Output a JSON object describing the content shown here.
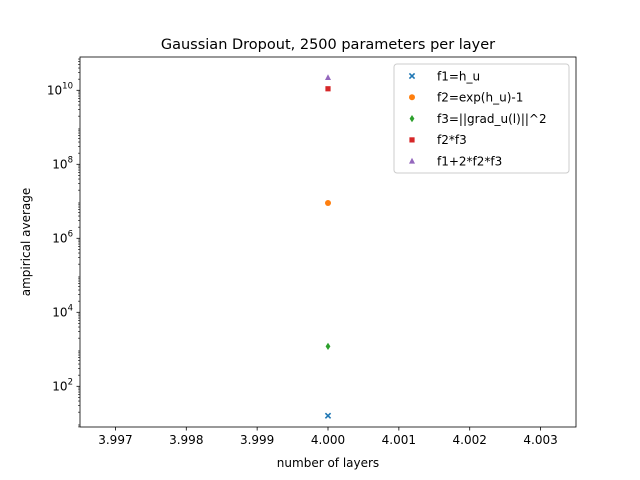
{
  "chart_data": {
    "type": "scatter",
    "title": "Gaussian Dropout, 2500 parameters per layer",
    "xlabel": "number of layers",
    "ylabel": "ampirical average",
    "xlim": [
      3.9965,
      4.0035
    ],
    "ylim_log10": [
      0.9,
      10.9
    ],
    "yscale": "log",
    "xticks": [
      "3.997",
      "3.998",
      "3.999",
      "4.000",
      "4.001",
      "4.002",
      "4.003"
    ],
    "xtick_values": [
      3.997,
      3.998,
      3.999,
      4.0,
      4.001,
      4.002,
      4.003
    ],
    "yticks": [
      {
        "base": "10",
        "exp": "2",
        "value": 100
      },
      {
        "base": "10",
        "exp": "4",
        "value": 10000
      },
      {
        "base": "10",
        "exp": "6",
        "value": 1000000
      },
      {
        "base": "10",
        "exp": "8",
        "value": 100000000
      },
      {
        "base": "10",
        "exp": "10",
        "value": 10000000000
      }
    ],
    "legend_position": "top-right",
    "series": [
      {
        "name": "f1=h_u",
        "marker": "x",
        "color": "#1f77b4",
        "x": [
          4.0
        ],
        "y": [
          16
        ]
      },
      {
        "name": "f2=exp(h_u)-1",
        "marker": "circle",
        "color": "#ff7f0e",
        "x": [
          4.0
        ],
        "y": [
          9000000
        ]
      },
      {
        "name": "f3=||grad_u(l)||^2",
        "marker": "diamond",
        "color": "#2ca02c",
        "x": [
          4.0
        ],
        "y": [
          1200
        ]
      },
      {
        "name": "f2*f3",
        "marker": "square",
        "color": "#d62728",
        "x": [
          4.0
        ],
        "y": [
          11000000000
        ]
      },
      {
        "name": "f1+2*f2*f3",
        "marker": "triangle",
        "color": "#9467bd",
        "x": [
          4.0
        ],
        "y": [
          22000000000
        ]
      }
    ]
  }
}
